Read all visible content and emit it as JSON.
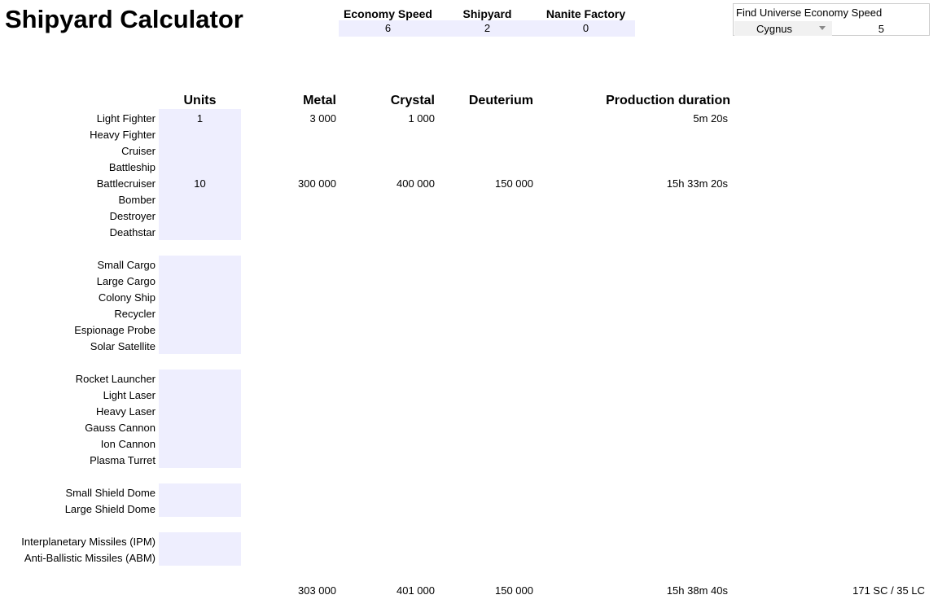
{
  "title": "Shipyard Calculator",
  "settings": [
    {
      "label": "Economy Speed",
      "value": "6"
    },
    {
      "label": "Shipyard",
      "value": "2"
    },
    {
      "label": "Nanite Factory",
      "value": "0"
    }
  ],
  "finder": {
    "label": "Find Universe Economy Speed",
    "universe": "Cygnus",
    "speed": "5"
  },
  "headers": {
    "units": "Units",
    "metal": "Metal",
    "crystal": "Crystal",
    "deuterium": "Deuterium",
    "duration": "Production duration"
  },
  "ships": [
    {
      "name": "Light Fighter",
      "units": "1",
      "metal": "3 000",
      "crystal": "1 000",
      "deuterium": "",
      "duration": "5m 20s"
    },
    {
      "name": "Heavy Fighter",
      "units": "",
      "metal": "",
      "crystal": "",
      "deuterium": "",
      "duration": ""
    },
    {
      "name": "Cruiser",
      "units": "",
      "metal": "",
      "crystal": "",
      "deuterium": "",
      "duration": ""
    },
    {
      "name": "Battleship",
      "units": "",
      "metal": "",
      "crystal": "",
      "deuterium": "",
      "duration": ""
    },
    {
      "name": "Battlecruiser",
      "units": "10",
      "metal": "300 000",
      "crystal": "400 000",
      "deuterium": "150 000",
      "duration": "15h 33m 20s"
    },
    {
      "name": "Bomber",
      "units": "",
      "metal": "",
      "crystal": "",
      "deuterium": "",
      "duration": ""
    },
    {
      "name": "Destroyer",
      "units": "",
      "metal": "",
      "crystal": "",
      "deuterium": "",
      "duration": ""
    },
    {
      "name": "Deathstar",
      "units": "",
      "metal": "",
      "crystal": "",
      "deuterium": "",
      "duration": ""
    }
  ],
  "civil": [
    {
      "name": "Small Cargo",
      "units": ""
    },
    {
      "name": "Large Cargo",
      "units": ""
    },
    {
      "name": "Colony Ship",
      "units": ""
    },
    {
      "name": "Recycler",
      "units": ""
    },
    {
      "name": "Espionage Probe",
      "units": ""
    },
    {
      "name": "Solar Satellite",
      "units": ""
    }
  ],
  "defense": [
    {
      "name": "Rocket Launcher",
      "units": ""
    },
    {
      "name": "Light Laser",
      "units": ""
    },
    {
      "name": "Heavy Laser",
      "units": ""
    },
    {
      "name": "Gauss Cannon",
      "units": ""
    },
    {
      "name": "Ion Cannon",
      "units": ""
    },
    {
      "name": "Plasma Turret",
      "units": ""
    }
  ],
  "shields": [
    {
      "name": "Small Shield Dome",
      "units": ""
    },
    {
      "name": "Large Shield Dome",
      "units": ""
    }
  ],
  "missiles": [
    {
      "name": "Interplanetary Missiles (IPM)",
      "units": ""
    },
    {
      "name": "Anti-Ballistic Missiles (ABM)",
      "units": ""
    }
  ],
  "totals": {
    "metal": "303 000",
    "crystal": "401 000",
    "deuterium": "150 000",
    "duration": "15h 38m 40s",
    "cargo": "171 SC / 35 LC"
  }
}
